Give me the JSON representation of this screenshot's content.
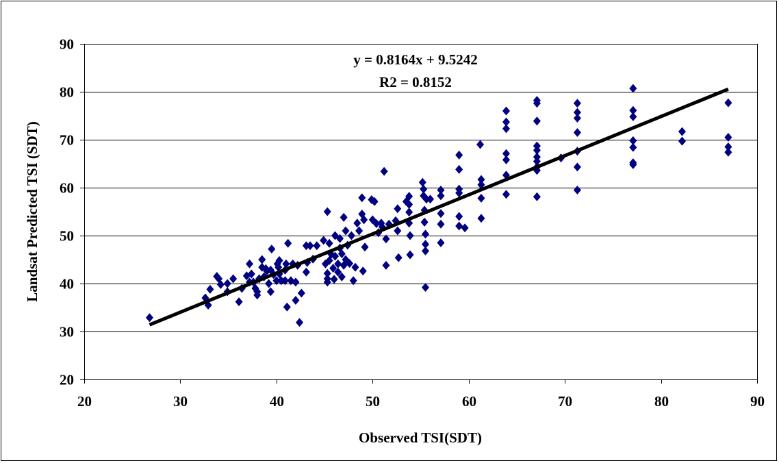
{
  "chart_data": {
    "type": "scatter",
    "title": "",
    "xlabel": "Observed TSI(SDT)",
    "ylabel": "Landsat Predicted TSI (SDT)",
    "xlim": [
      20,
      90
    ],
    "ylim": [
      20,
      90
    ],
    "x_ticks": [
      20,
      30,
      40,
      50,
      60,
      70,
      80,
      90
    ],
    "y_ticks": [
      20,
      30,
      40,
      50,
      60,
      70,
      80,
      90
    ],
    "grid": "horizontal",
    "legend": "none",
    "marker": "diamond",
    "colors": {
      "points": "#000080",
      "trendline": "#000000",
      "grid": "#000000"
    },
    "trendline": {
      "slope": 0.8164,
      "intercept": 9.5242,
      "x_range": [
        26.8,
        87
      ],
      "equation_label": "y = 0.8164x + 9.5242",
      "r2_label": "R2 = 0.8152"
    },
    "points": [
      [
        26.8,
        32.9
      ],
      [
        32.6,
        37
      ],
      [
        32.9,
        35.5
      ],
      [
        33.1,
        38.8
      ],
      [
        33.8,
        41.5
      ],
      [
        34,
        41
      ],
      [
        34.2,
        39.8
      ],
      [
        34.9,
        40
      ],
      [
        34.9,
        38.3
      ],
      [
        35.5,
        41
      ],
      [
        36.1,
        36.2
      ],
      [
        36.4,
        39
      ],
      [
        36.9,
        41.6
      ],
      [
        37.2,
        44.1
      ],
      [
        37.2,
        40.3
      ],
      [
        37.4,
        42
      ],
      [
        37.6,
        40.3
      ],
      [
        37.8,
        39
      ],
      [
        38,
        38.3
      ],
      [
        38,
        37.6
      ],
      [
        38.2,
        41
      ],
      [
        38.5,
        43.4
      ],
      [
        38.5,
        45
      ],
      [
        38.7,
        41.4
      ],
      [
        38.9,
        43.1
      ],
      [
        39,
        42.6
      ],
      [
        39.2,
        40
      ],
      [
        39.4,
        38.3
      ],
      [
        39.4,
        42.8
      ],
      [
        39.5,
        47.2
      ],
      [
        39.7,
        41.9
      ],
      [
        40,
        40.6
      ],
      [
        40.1,
        44.1
      ],
      [
        40.2,
        43.4
      ],
      [
        40.3,
        44.8
      ],
      [
        40.3,
        42
      ],
      [
        40.5,
        40.6
      ],
      [
        40.9,
        40.6
      ],
      [
        40.9,
        42.8
      ],
      [
        41,
        44.1
      ],
      [
        41.1,
        35.1
      ],
      [
        41.2,
        48.4
      ],
      [
        41.5,
        40.6
      ],
      [
        41.7,
        44.1
      ],
      [
        42,
        36.5
      ],
      [
        42,
        40.3
      ],
      [
        42.2,
        43.8
      ],
      [
        42.4,
        31.9
      ],
      [
        42.6,
        38
      ],
      [
        43.1,
        47.9
      ],
      [
        43.1,
        42.4
      ],
      [
        43.2,
        44.4
      ],
      [
        43.5,
        47.9
      ],
      [
        43.8,
        45.1
      ],
      [
        44.2,
        47.9
      ],
      [
        44.9,
        49
      ],
      [
        45.1,
        44.1
      ],
      [
        45.3,
        55
      ],
      [
        45.3,
        41
      ],
      [
        45.3,
        40.3
      ],
      [
        45.3,
        42.1
      ],
      [
        45.5,
        48.4
      ],
      [
        45.5,
        44.8
      ],
      [
        45.7,
        46.1
      ],
      [
        45.9,
        43.2
      ],
      [
        46,
        40.9
      ],
      [
        46.1,
        50
      ],
      [
        46.1,
        45.7
      ],
      [
        46.4,
        42.4
      ],
      [
        46.4,
        44.1
      ],
      [
        46.6,
        47.4
      ],
      [
        46.6,
        49.4
      ],
      [
        46.8,
        46.2
      ],
      [
        46.8,
        41.4
      ],
      [
        47,
        53.8
      ],
      [
        47,
        43.8
      ],
      [
        47.2,
        51
      ],
      [
        47.2,
        45
      ],
      [
        47.4,
        48
      ],
      [
        47.6,
        44.2
      ],
      [
        47.8,
        50
      ],
      [
        48,
        40.6
      ],
      [
        48.2,
        43.4
      ],
      [
        48.4,
        52.6
      ],
      [
        48.6,
        51
      ],
      [
        48.9,
        57.9
      ],
      [
        48.9,
        54.5
      ],
      [
        49,
        42.6
      ],
      [
        49.1,
        53.3
      ],
      [
        49.2,
        47.6
      ],
      [
        49.9,
        57.5
      ],
      [
        50,
        53.3
      ],
      [
        50.2,
        57.1
      ],
      [
        50.4,
        52.5
      ],
      [
        50.6,
        50.6
      ],
      [
        50.9,
        52.6
      ],
      [
        51,
        51.8
      ],
      [
        51.2,
        63.4
      ],
      [
        51.4,
        49.3
      ],
      [
        51.4,
        43.8
      ],
      [
        51.7,
        52.4
      ],
      [
        52.4,
        53.1
      ],
      [
        52.6,
        55.6
      ],
      [
        52.6,
        51
      ],
      [
        52.7,
        45.4
      ],
      [
        53.5,
        57.1
      ],
      [
        53.8,
        52.6
      ],
      [
        53.8,
        56.5
      ],
      [
        53.8,
        58.2
      ],
      [
        53.8,
        54.9
      ],
      [
        53.9,
        50
      ],
      [
        53.9,
        46
      ],
      [
        55.2,
        61.1
      ],
      [
        55.3,
        58.3
      ],
      [
        55.3,
        59.7
      ],
      [
        55.4,
        55.3
      ],
      [
        55.4,
        52.8
      ],
      [
        55.5,
        50.3
      ],
      [
        55.5,
        48.2
      ],
      [
        55.5,
        46.8
      ],
      [
        55.5,
        39.2
      ],
      [
        55.6,
        57.6
      ],
      [
        56,
        57.6
      ],
      [
        57.1,
        59.5
      ],
      [
        57.1,
        58.3
      ],
      [
        57.1,
        54.6
      ],
      [
        57.1,
        52.4
      ],
      [
        57.1,
        48.5
      ],
      [
        59,
        66.8
      ],
      [
        59,
        63.8
      ],
      [
        59,
        59.7
      ],
      [
        59,
        58.9
      ],
      [
        59,
        54
      ],
      [
        59,
        52
      ],
      [
        59.6,
        51.6
      ],
      [
        61.2,
        69
      ],
      [
        61.3,
        61.7
      ],
      [
        61.3,
        60.6
      ],
      [
        61.3,
        57.8
      ],
      [
        61.3,
        53.6
      ],
      [
        63.9,
        76
      ],
      [
        63.9,
        73.7
      ],
      [
        63.9,
        72.3
      ],
      [
        63.9,
        67.1
      ],
      [
        63.9,
        65.8
      ],
      [
        63.9,
        62.6
      ],
      [
        63.9,
        58.6
      ],
      [
        67.1,
        78.2
      ],
      [
        67.1,
        77.6
      ],
      [
        67.1,
        73.9
      ],
      [
        67.1,
        68.7
      ],
      [
        67.1,
        67.8
      ],
      [
        67.1,
        66.4
      ],
      [
        67.1,
        65.5
      ],
      [
        67.1,
        64.3
      ],
      [
        67.1,
        63.6
      ],
      [
        67.1,
        58.1
      ],
      [
        69.6,
        66.2
      ],
      [
        71.3,
        77.6
      ],
      [
        71.3,
        75.7
      ],
      [
        71.3,
        74.5
      ],
      [
        71.3,
        71.5
      ],
      [
        71.3,
        67.6
      ],
      [
        71.3,
        64.3
      ],
      [
        71.3,
        59.5
      ],
      [
        77.1,
        80.7
      ],
      [
        77.1,
        76.1
      ],
      [
        77.1,
        74.8
      ],
      [
        77.1,
        69.8
      ],
      [
        77.1,
        68.4
      ],
      [
        77.1,
        65.2
      ],
      [
        77.1,
        64.8
      ],
      [
        82.2,
        71.7
      ],
      [
        82.2,
        69.7
      ],
      [
        87,
        77.7
      ],
      [
        87,
        70.5
      ],
      [
        87,
        68.5
      ],
      [
        87,
        67.4
      ]
    ]
  }
}
